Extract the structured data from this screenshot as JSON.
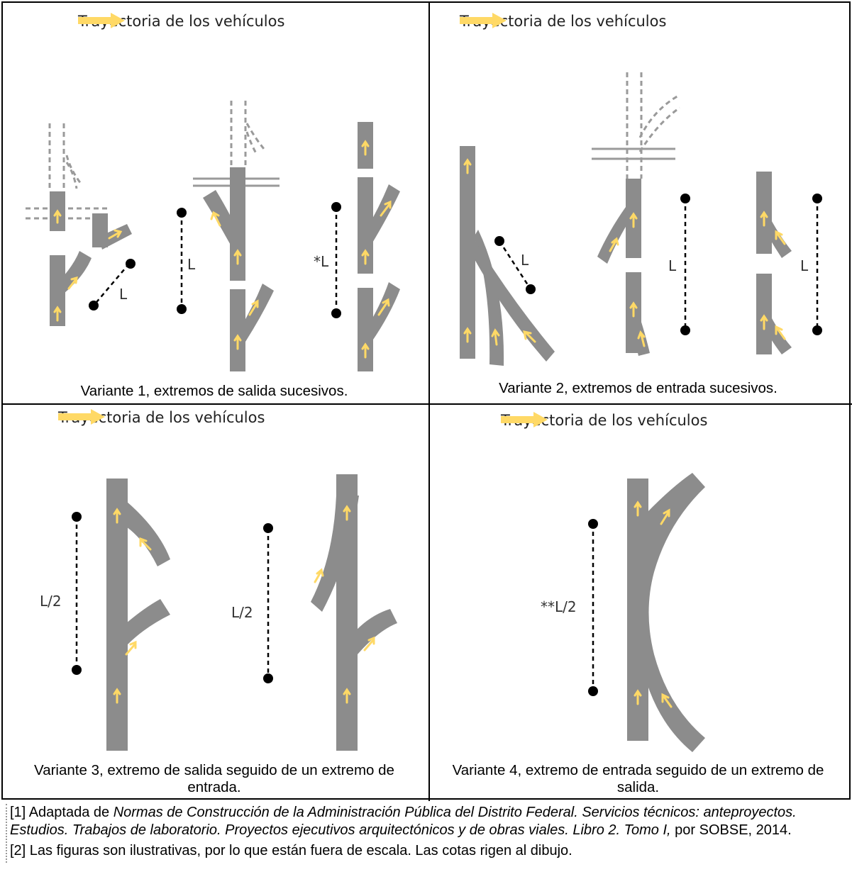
{
  "legend_label": "Trayectoria de los vehículos",
  "colors": {
    "road": "#8c8c8c",
    "arrow": "#ffd966",
    "legend_arrow": "#ffd966",
    "dashed_guide": "#9a9a9a",
    "dimension": "#000000"
  },
  "panels": [
    {
      "caption": "Variante 1, extremos de salida sucesivos.",
      "dimension_labels": [
        "L",
        "L",
        "*L"
      ]
    },
    {
      "caption": "Variante 2, extremos de entrada sucesivos.",
      "dimension_labels": [
        "L",
        "L",
        "L"
      ]
    },
    {
      "caption": "Variante 3, extremo de salida seguido de un extremo de entrada.",
      "dimension_labels": [
        "L/2",
        "L/2"
      ]
    },
    {
      "caption": "Variante 4, extremo de entrada seguido de un extremo de salida.",
      "dimension_labels": [
        "**L/2"
      ]
    }
  ],
  "notes": {
    "note1_prefix": "[1] Adaptada de ",
    "note1_title": "Normas de Construcción de la Administración Pública del Distrito Federal. Servicios técnicos: anteproyectos. Estudios. Trabajos de laboratorio. Proyectos ejecutivos arquitectónicos y de obras viales. Libro 2. Tomo I,",
    "note1_suffix": " por SOBSE, 2014.",
    "note2": "[2] Las figuras son ilustrativas, por lo que están fuera de escala. Las cotas rigen al dibujo."
  }
}
